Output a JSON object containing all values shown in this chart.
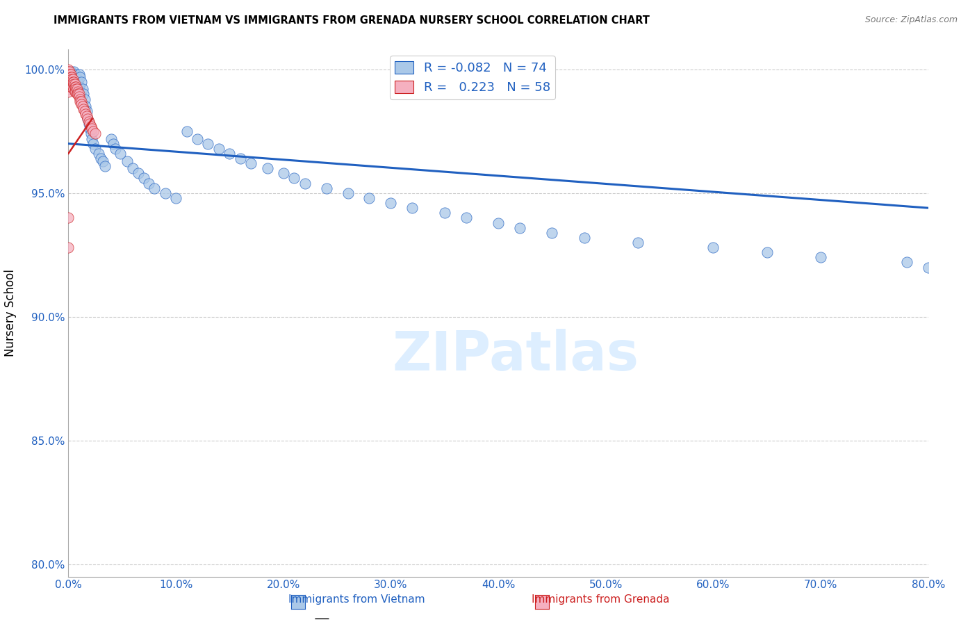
{
  "title": "IMMIGRANTS FROM VIETNAM VS IMMIGRANTS FROM GRENADA NURSERY SCHOOL CORRELATION CHART",
  "source": "Source: ZipAtlas.com",
  "ylabel": "Nursery School",
  "legend_label_1": "Immigrants from Vietnam",
  "legend_label_2": "Immigrants from Grenada",
  "R_vietnam": -0.082,
  "N_vietnam": 74,
  "R_grenada": 0.223,
  "N_grenada": 58,
  "xlim": [
    0.0,
    0.8
  ],
  "ylim": [
    0.795,
    1.008
  ],
  "xticks": [
    0.0,
    0.1,
    0.2,
    0.3,
    0.4,
    0.5,
    0.6,
    0.7,
    0.8
  ],
  "yticks": [
    0.8,
    0.85,
    0.9,
    0.95,
    1.0
  ],
  "xtick_labels": [
    "0.0%",
    "10.0%",
    "20.0%",
    "30.0%",
    "40.0%",
    "50.0%",
    "60.0%",
    "70.0%",
    "80.0%"
  ],
  "ytick_labels": [
    "80.0%",
    "85.0%",
    "90.0%",
    "95.0%",
    "100.0%"
  ],
  "color_vietnam": "#aac8e8",
  "color_grenada": "#f5b0c0",
  "trendline_vietnam_color": "#2060c0",
  "trendline_grenada_color": "#cc2020",
  "background_color": "#ffffff",
  "grid_color": "#cccccc",
  "viet_trend_x0": 0.0,
  "viet_trend_x1": 0.8,
  "viet_trend_y0": 0.97,
  "viet_trend_y1": 0.944,
  "gren_trend_x0": 0.0,
  "gren_trend_x1": 0.022,
  "gren_trend_y0": 0.966,
  "gren_trend_y1": 0.98
}
